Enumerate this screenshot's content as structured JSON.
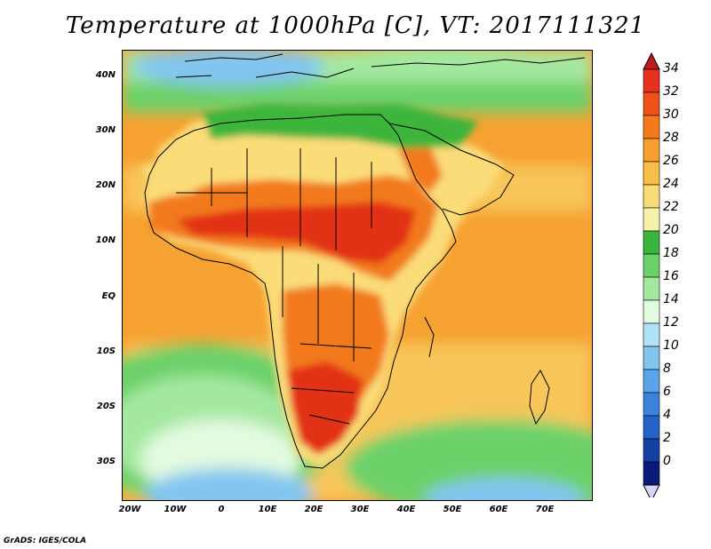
{
  "title": "Temperature at 1000hPa [C], VT: 2017111321",
  "credit": "GrADS: IGES/COLA",
  "latitude_labels": [
    "40N",
    "30N",
    "20N",
    "10N",
    "EQ",
    "10S",
    "20S",
    "30S"
  ],
  "longitude_labels": [
    "20W",
    "10W",
    "0",
    "10E",
    "20E",
    "30E",
    "40E",
    "50E",
    "60E",
    "70E"
  ],
  "colorbar": {
    "labels": [
      "34",
      "32",
      "30",
      "28",
      "26",
      "24",
      "22",
      "20",
      "18",
      "16",
      "14",
      "12",
      "10",
      "8",
      "6",
      "4",
      "2",
      "0"
    ],
    "colors": [
      "#e8301e",
      "#f0501a",
      "#f57a1c",
      "#f7a02e",
      "#f8be48",
      "#fadc78",
      "#f6f2a8",
      "#3cb53c",
      "#6dd16a",
      "#a4e8a0",
      "#e2fae0",
      "#b0e2f6",
      "#82c6f0",
      "#5aa4ea",
      "#3c82dc",
      "#2462c8",
      "#1440a4",
      "#0a1a78"
    ],
    "top_arrow_color": "#c01a1a",
    "bottom_arrow_color": "#d8d4f4"
  },
  "map_colors": {
    "ocean_warm": "#f6a232",
    "ocean_mid": "#f8c65a",
    "ocean_cool_green": "#6dd16a",
    "ocean_pale": "#a4e8a0",
    "ocean_cyan": "#e2fae0",
    "ocean_blue": "#82c6f0",
    "land_hot": "#e23018",
    "land_warm": "#f27a1e",
    "land_yellow": "#fadc78",
    "land_green": "#3cb53c",
    "land_med_blue": "#5aa4ea",
    "border": "#000000"
  }
}
